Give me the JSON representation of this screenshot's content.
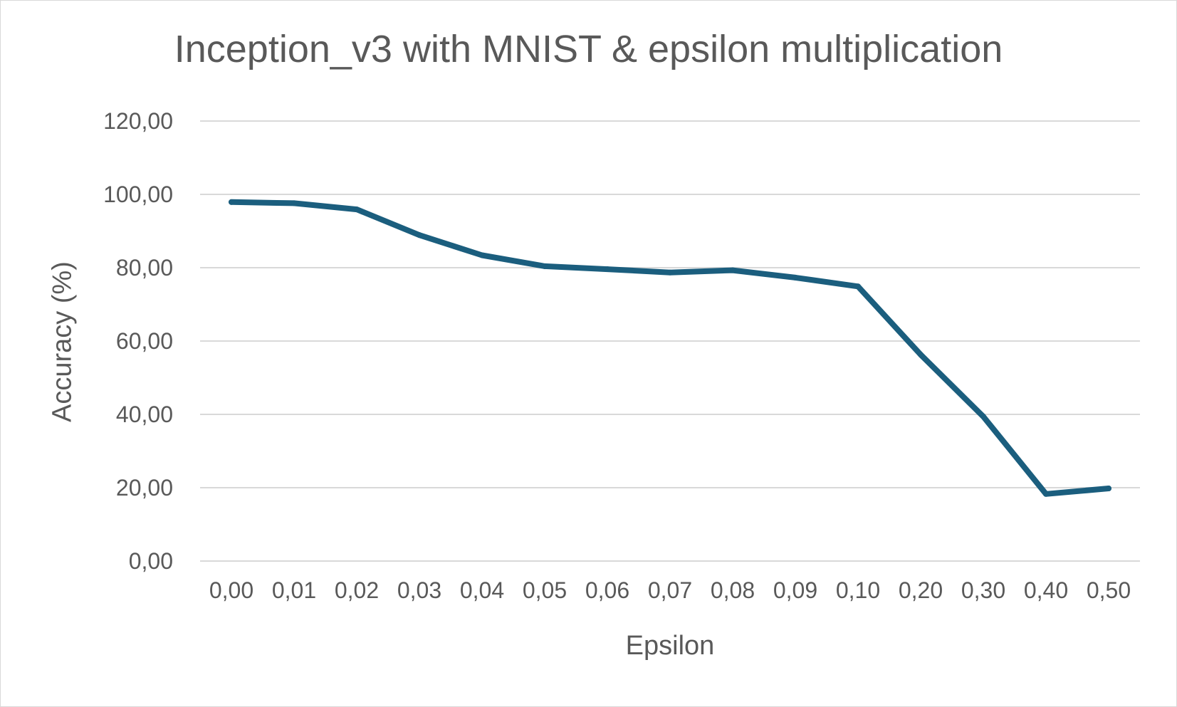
{
  "chart_data": {
    "type": "line",
    "title": "Inception_v3 with MNIST & epsilon multiplication",
    "xlabel": "Epsilon",
    "ylabel": "Accuracy (%)",
    "categories": [
      "0,00",
      "0,01",
      "0,02",
      "0,03",
      "0,04",
      "0,05",
      "0,06",
      "0,07",
      "0,08",
      "0,09",
      "0,10",
      "0,20",
      "0,30",
      "0,40",
      "0,50"
    ],
    "series": [
      {
        "values": [
          97.9,
          97.6,
          95.9,
          88.9,
          83.4,
          80.4,
          79.6,
          78.7,
          79.3,
          77.3,
          74.9,
          56.3,
          39.4,
          18.3,
          19.8
        ]
      }
    ],
    "ylim": [
      0,
      120
    ],
    "yticks": [
      "0,00",
      "20,00",
      "40,00",
      "60,00",
      "80,00",
      "100,00",
      "120,00"
    ],
    "grid": true,
    "legend": "none",
    "colors": {
      "line": "#1b5e7e",
      "grid": "#d9d9d9",
      "text": "#595959"
    }
  }
}
